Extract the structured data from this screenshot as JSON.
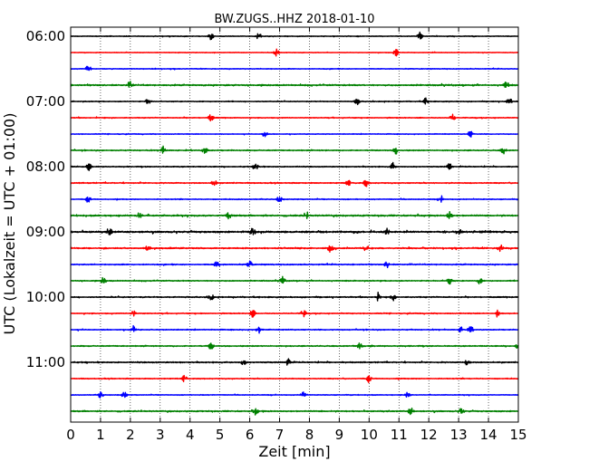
{
  "chart_data": {
    "type": "line",
    "title": "BW.ZUGS..HHZ 2018-01-10",
    "xlabel": "Zeit  [min]",
    "ylabel": "UTC (Lokalzeit = UTC + 01:00)",
    "xlim": [
      0,
      15
    ],
    "x_ticks": [
      0,
      1,
      2,
      3,
      4,
      5,
      6,
      7,
      8,
      9,
      10,
      11,
      12,
      13,
      14,
      15
    ],
    "x_tick_labels": [
      "0",
      "1",
      "2",
      "3",
      "4",
      "5",
      "6",
      "7",
      "8",
      "9",
      "10",
      "11",
      "12",
      "13",
      "14",
      "15"
    ],
    "y_tick_labels": [
      "06:00",
      "07:00",
      "08:00",
      "09:00",
      "10:00",
      "11:00"
    ],
    "grid": "vertical-dotted",
    "trace_colors": [
      "#000000",
      "#ff0000",
      "#0000ff",
      "#008000"
    ],
    "series": [
      {
        "start": "06:00",
        "color": "black",
        "spikes": [
          4.7,
          6.3,
          11.7
        ],
        "noise": 0.3
      },
      {
        "start": "06:15",
        "color": "red",
        "spikes": [
          6.9,
          10.9
        ],
        "noise": 0.25
      },
      {
        "start": "06:30",
        "color": "blue",
        "spikes": [
          0.6
        ],
        "noise": 0.3
      },
      {
        "start": "06:45",
        "color": "green",
        "spikes": [
          2.0,
          14.6
        ],
        "noise": 0.55
      },
      {
        "start": "07:00",
        "color": "black",
        "spikes": [
          2.6,
          9.6,
          11.9,
          14.7
        ],
        "noise": 0.35
      },
      {
        "start": "07:15",
        "color": "red",
        "spikes": [
          4.7,
          12.8
        ],
        "noise": 0.35
      },
      {
        "start": "07:30",
        "color": "blue",
        "spikes": [
          6.5,
          13.4
        ],
        "noise": 0.3
      },
      {
        "start": "07:45",
        "color": "green",
        "spikes": [
          3.1,
          4.5,
          10.9,
          14.5
        ],
        "noise": 0.45
      },
      {
        "start": "08:00",
        "color": "black",
        "spikes": [
          0.6,
          6.2,
          10.8,
          12.7
        ],
        "noise": 0.4
      },
      {
        "start": "08:15",
        "color": "red",
        "spikes": [
          4.8,
          9.3,
          9.9
        ],
        "noise": 0.45
      },
      {
        "start": "08:30",
        "color": "blue",
        "spikes": [
          0.6,
          7.0,
          12.4
        ],
        "noise": 0.35
      },
      {
        "start": "08:45",
        "color": "green",
        "spikes": [
          2.3,
          5.3,
          7.9,
          12.7
        ],
        "noise": 0.6
      },
      {
        "start": "09:00",
        "color": "black",
        "spikes": [
          1.3,
          6.1,
          10.6,
          13.0
        ],
        "noise": 0.7
      },
      {
        "start": "09:15",
        "color": "red",
        "spikes": [
          2.6,
          8.7,
          9.9,
          14.4
        ],
        "noise": 0.55
      },
      {
        "start": "09:30",
        "color": "blue",
        "spikes": [
          4.9,
          6.0,
          10.6
        ],
        "noise": 0.45
      },
      {
        "start": "09:45",
        "color": "green",
        "spikes": [
          1.1,
          7.1,
          12.7,
          13.7
        ],
        "noise": 0.4
      },
      {
        "start": "10:00",
        "color": "black",
        "spikes": [
          4.7,
          10.3,
          10.8
        ],
        "noise": 0.45
      },
      {
        "start": "10:15",
        "color": "red",
        "spikes": [
          2.1,
          6.1,
          7.8,
          14.3
        ],
        "noise": 0.4
      },
      {
        "start": "10:30",
        "color": "blue",
        "spikes": [
          2.1,
          6.3,
          13.1,
          13.4
        ],
        "noise": 0.4
      },
      {
        "start": "10:45",
        "color": "green",
        "spikes": [
          4.7,
          9.7,
          15.0
        ],
        "noise": 0.45
      },
      {
        "start": "11:00",
        "color": "black",
        "spikes": [
          5.8,
          7.3,
          13.3
        ],
        "noise": 0.5
      },
      {
        "start": "11:15",
        "color": "red",
        "spikes": [
          3.8,
          10.0
        ],
        "noise": 0.4
      },
      {
        "start": "11:30",
        "color": "blue",
        "spikes": [
          1.0,
          1.8,
          7.8,
          11.3
        ],
        "noise": 0.3
      },
      {
        "start": "11:45",
        "color": "green",
        "spikes": [
          6.2,
          11.4,
          13.1
        ],
        "noise": 0.5
      }
    ]
  }
}
